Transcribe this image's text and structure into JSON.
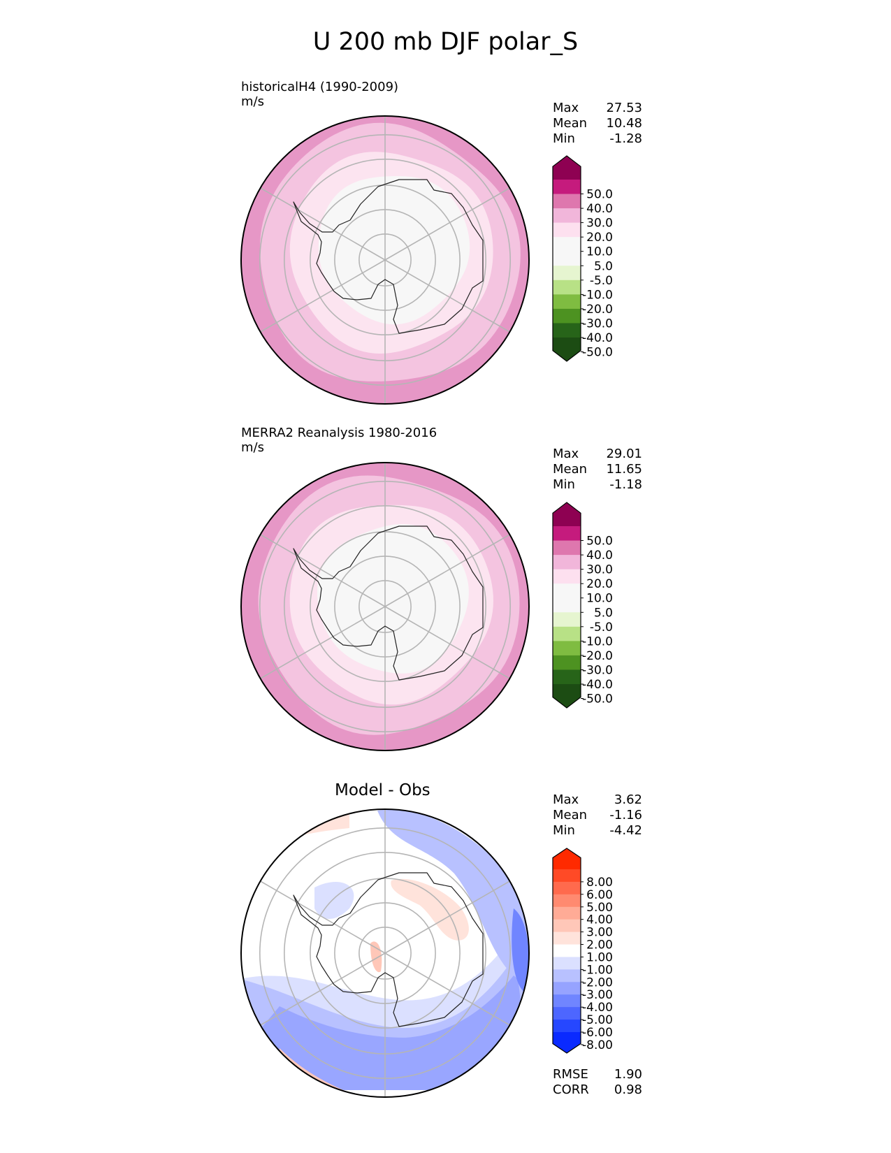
{
  "title": "U 200 mb DJF polar_S",
  "chart_data": [
    {
      "type": "heatmap",
      "title": "historicalH4 (1990-2009)",
      "units": "m/s",
      "projection": "south polar stereographic",
      "stats": [
        {
          "label": "Max",
          "value": "27.53"
        },
        {
          "label": "Mean",
          "value": "10.48"
        },
        {
          "label": "Min",
          "value": "-1.28"
        }
      ],
      "levels": [
        "50.0",
        "40.0",
        "30.0",
        "20.0",
        "10.0",
        "5.0",
        "-5.0",
        "-10.0",
        "-20.0",
        "-30.0",
        "-40.0",
        "-50.0"
      ],
      "colors": [
        "#8e0152",
        "#c51b7d",
        "#de77ae",
        "#f1b6da",
        "#fde0ef",
        "#f7f7f7",
        "#f7f7f7",
        "#e6f5d0",
        "#b8e186",
        "#7fbc41",
        "#4d9221",
        "#276419",
        "#1c4c13"
      ],
      "rings": [
        {
          "value": 30,
          "color": "#e697c6"
        },
        {
          "value": 20,
          "color": "#f4c4e0"
        },
        {
          "value": 10,
          "color": "#fce4f0"
        },
        {
          "value": 0,
          "color": "#f7f7f7"
        }
      ]
    },
    {
      "type": "heatmap",
      "title": "MERRA2 Reanalysis 1980-2016",
      "units": "m/s",
      "projection": "south polar stereographic",
      "stats": [
        {
          "label": "Max",
          "value": "29.01"
        },
        {
          "label": "Mean",
          "value": "11.65"
        },
        {
          "label": "Min",
          "value": "-1.18"
        }
      ],
      "levels": [
        "50.0",
        "40.0",
        "30.0",
        "20.0",
        "10.0",
        "5.0",
        "-5.0",
        "-10.0",
        "-20.0",
        "-30.0",
        "-40.0",
        "-50.0"
      ],
      "colors": [
        "#8e0152",
        "#c51b7d",
        "#de77ae",
        "#f1b6da",
        "#fde0ef",
        "#f7f7f7",
        "#f7f7f7",
        "#e6f5d0",
        "#b8e186",
        "#7fbc41",
        "#4d9221",
        "#276419",
        "#1c4c13"
      ],
      "rings": [
        {
          "value": 30,
          "color": "#e697c6"
        },
        {
          "value": 20,
          "color": "#f4c4e0"
        },
        {
          "value": 10,
          "color": "#fce4f0"
        },
        {
          "value": 0,
          "color": "#f7f7f7"
        }
      ]
    },
    {
      "type": "heatmap",
      "title": "Model - Obs",
      "units": "",
      "projection": "south polar stereographic",
      "stats": [
        {
          "label": "Max",
          "value": "3.62"
        },
        {
          "label": "Mean",
          "value": "-1.16"
        },
        {
          "label": "Min",
          "value": "-4.42"
        }
      ],
      "levels": [
        "8.00",
        "6.00",
        "5.00",
        "4.00",
        "3.00",
        "2.00",
        "1.00",
        "-1.00",
        "-2.00",
        "-3.00",
        "-4.00",
        "-5.00",
        "-6.00",
        "-8.00"
      ],
      "colors": [
        "#ff2a00",
        "#ff4a26",
        "#ff6a4d",
        "#ff8a70",
        "#ffab96",
        "#ffc7b8",
        "#ffe3db",
        "#ffffff",
        "#dbe0ff",
        "#b8c1ff",
        "#96a3ff",
        "#7085ff",
        "#4d66ff",
        "#2647ff",
        "#0a2aff"
      ],
      "extra_stats": [
        {
          "label": "RMSE",
          "value": "1.90"
        },
        {
          "label": "CORR",
          "value": "0.98"
        }
      ]
    }
  ]
}
